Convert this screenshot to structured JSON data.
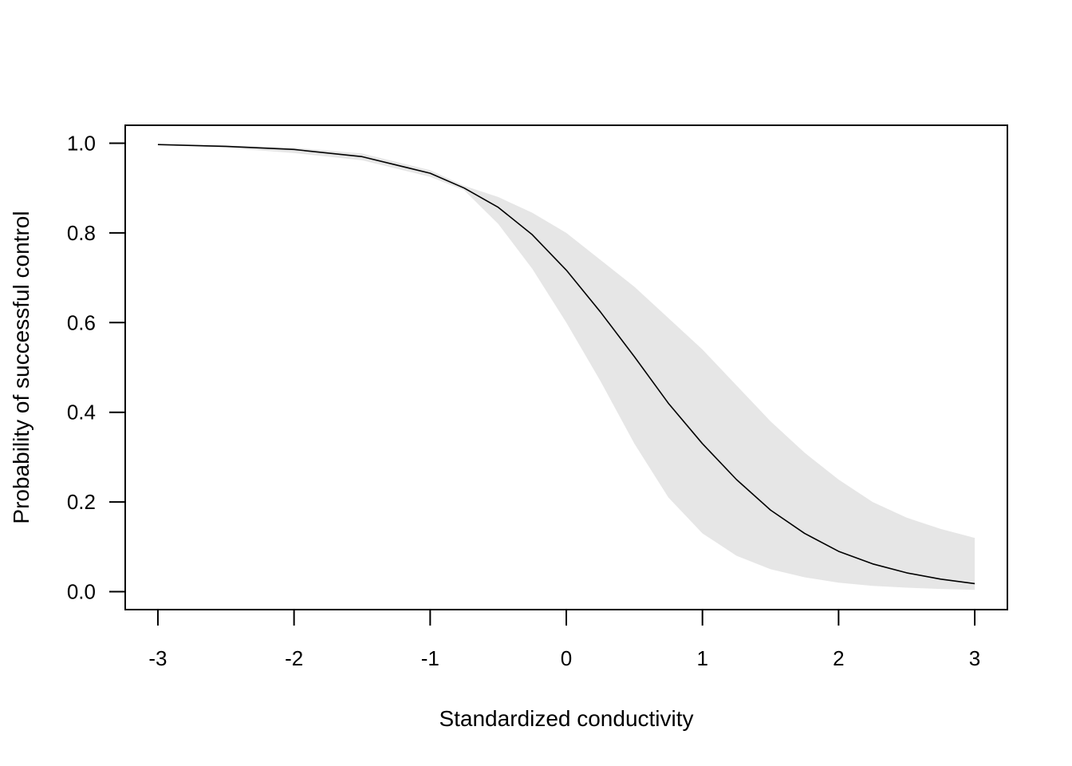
{
  "chart_data": {
    "type": "line",
    "title": "",
    "xlabel": "Standardized conductivity",
    "ylabel": "Probability of successful control",
    "xlim": [
      -3.24,
      3.24
    ],
    "ylim": [
      -0.04,
      1.04
    ],
    "xticks": [
      -3,
      -2,
      -1,
      0,
      1,
      2,
      3
    ],
    "xtick_labels": [
      "-3",
      "-2",
      "-1",
      "0",
      "1",
      "2",
      "3"
    ],
    "yticks": [
      0.0,
      0.2,
      0.4,
      0.6,
      0.8,
      1.0
    ],
    "ytick_labels": [
      "0.0",
      "0.2",
      "0.4",
      "0.6",
      "0.8",
      "1.0"
    ],
    "grid": false,
    "legend": "none",
    "series": [
      {
        "x": [
          -3.0,
          -2.5,
          -2.0,
          -1.5,
          -1.0,
          -0.75,
          -0.5,
          -0.25,
          0.0,
          0.25,
          0.5,
          0.75,
          1.0,
          1.25,
          1.5,
          1.75,
          2.0,
          2.25,
          2.5,
          2.75,
          3.0
        ],
        "y": [
          0.997,
          0.993,
          0.986,
          0.97,
          0.933,
          0.9,
          0.857,
          0.796,
          0.717,
          0.624,
          0.524,
          0.42,
          0.33,
          0.25,
          0.182,
          0.13,
          0.09,
          0.062,
          0.042,
          0.028,
          0.018
        ],
        "lower": [
          0.996,
          0.99,
          0.978,
          0.962,
          0.925,
          0.895,
          0.82,
          0.72,
          0.6,
          0.47,
          0.33,
          0.21,
          0.13,
          0.08,
          0.05,
          0.032,
          0.02,
          0.013,
          0.009,
          0.006,
          0.004
        ],
        "upper": [
          0.998,
          0.995,
          0.99,
          0.977,
          0.94,
          0.905,
          0.88,
          0.845,
          0.8,
          0.74,
          0.68,
          0.61,
          0.54,
          0.46,
          0.38,
          0.31,
          0.25,
          0.2,
          0.165,
          0.14,
          0.12
        ]
      }
    ],
    "colors": {
      "line": "#000000",
      "band": "#e6e6e6",
      "axes": "#000000"
    }
  }
}
